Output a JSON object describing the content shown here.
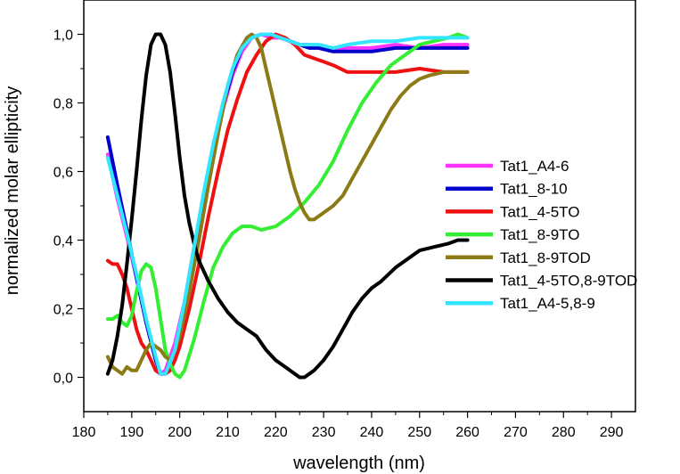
{
  "chart_data": {
    "type": "line",
    "title": "",
    "xlabel": "wavelength (nm)",
    "ylabel": "normalized molar ellipticity",
    "xlim": [
      180,
      295
    ],
    "ylim": [
      -0.1,
      1.1
    ],
    "xticks": [
      180,
      190,
      200,
      210,
      220,
      230,
      240,
      250,
      260,
      270,
      280,
      290
    ],
    "yticks": [
      0.0,
      0.2,
      0.4,
      0.6,
      0.8,
      1.0
    ],
    "xtick_labels": [
      "180",
      "190",
      "200",
      "210",
      "220",
      "230",
      "240",
      "250",
      "260",
      "270",
      "280",
      "290"
    ],
    "ytick_labels": [
      "0,0",
      "0,2",
      "0,4",
      "0,6",
      "0,8",
      "1,0"
    ],
    "grid": false,
    "legend_position": "right",
    "series": [
      {
        "name": "Tat1_A4-6",
        "color": "#ff33ff",
        "x": [
          185,
          187,
          189,
          191,
          193,
          195,
          196,
          197,
          199,
          201,
          203,
          205,
          207,
          209,
          211,
          213,
          215,
          217,
          219,
          221,
          223,
          225,
          227,
          229,
          232,
          235,
          240,
          245,
          250,
          255,
          260
        ],
        "y": [
          0.65,
          0.52,
          0.41,
          0.29,
          0.16,
          0.05,
          0.01,
          0.02,
          0.1,
          0.22,
          0.38,
          0.52,
          0.66,
          0.78,
          0.88,
          0.95,
          0.99,
          1.0,
          0.99,
          0.99,
          0.98,
          0.97,
          0.97,
          0.96,
          0.95,
          0.96,
          0.96,
          0.97,
          0.96,
          0.97,
          0.97
        ]
      },
      {
        "name": "Tat1_8-10",
        "color": "#0000cc",
        "x": [
          185,
          187,
          189,
          191,
          193,
          195,
          196,
          197,
          199,
          201,
          203,
          205,
          207,
          209,
          211,
          213,
          215,
          217,
          219,
          221,
          223,
          225,
          227,
          229,
          232,
          235,
          240,
          245,
          250,
          255,
          260
        ],
        "y": [
          0.7,
          0.56,
          0.43,
          0.29,
          0.16,
          0.05,
          0.01,
          0.01,
          0.08,
          0.2,
          0.36,
          0.52,
          0.66,
          0.79,
          0.89,
          0.96,
          0.99,
          1.0,
          1.0,
          0.99,
          0.98,
          0.97,
          0.96,
          0.96,
          0.95,
          0.95,
          0.95,
          0.96,
          0.96,
          0.96,
          0.96
        ]
      },
      {
        "name": "Tat1_4-5TO",
        "color": "#ee1111",
        "x": [
          185,
          186,
          187,
          188,
          189,
          190,
          191,
          192,
          193,
          194,
          195,
          196,
          197,
          198,
          199,
          200,
          202,
          204,
          206,
          208,
          210,
          212,
          214,
          216,
          218,
          220,
          222,
          224,
          226,
          228,
          230,
          232,
          235,
          238,
          240,
          245,
          250,
          255,
          260
        ],
        "y": [
          0.34,
          0.33,
          0.33,
          0.3,
          0.26,
          0.2,
          0.14,
          0.1,
          0.08,
          0.05,
          0.02,
          0.01,
          0.01,
          0.02,
          0.05,
          0.09,
          0.2,
          0.33,
          0.47,
          0.6,
          0.72,
          0.81,
          0.89,
          0.94,
          0.98,
          1.0,
          0.99,
          0.97,
          0.94,
          0.93,
          0.92,
          0.91,
          0.89,
          0.89,
          0.89,
          0.89,
          0.9,
          0.89,
          0.89
        ]
      },
      {
        "name": "Tat1_8-9TO",
        "color": "#33ee33",
        "x": [
          185,
          186,
          187,
          188,
          189,
          190,
          191,
          192,
          193,
          194,
          195,
          196,
          197,
          198,
          199,
          200,
          201,
          203,
          205,
          207,
          209,
          211,
          213,
          215,
          217,
          220,
          223,
          226,
          229,
          232,
          235,
          238,
          241,
          244,
          247,
          250,
          253,
          256,
          258,
          260
        ],
        "y": [
          0.17,
          0.17,
          0.18,
          0.16,
          0.15,
          0.18,
          0.25,
          0.31,
          0.33,
          0.32,
          0.26,
          0.17,
          0.08,
          0.04,
          0.01,
          0.0,
          0.02,
          0.11,
          0.22,
          0.32,
          0.38,
          0.42,
          0.44,
          0.44,
          0.43,
          0.44,
          0.47,
          0.51,
          0.56,
          0.63,
          0.72,
          0.8,
          0.86,
          0.91,
          0.94,
          0.97,
          0.98,
          0.99,
          1.0,
          0.99
        ]
      },
      {
        "name": "Tat1_8-9TOD",
        "color": "#8b7a15",
        "x": [
          185,
          186,
          187,
          188,
          189,
          190,
          191,
          192,
          193,
          194,
          195,
          196,
          197,
          198,
          199,
          200,
          202,
          204,
          206,
          208,
          210,
          212,
          214,
          215,
          216,
          217,
          218,
          219,
          220,
          221,
          222,
          223,
          224,
          225,
          226,
          227,
          228,
          230,
          232,
          234,
          236,
          238,
          240,
          242,
          244,
          246,
          248,
          250,
          252,
          255,
          258,
          260
        ],
        "y": [
          0.06,
          0.03,
          0.02,
          0.01,
          0.03,
          0.02,
          0.02,
          0.05,
          0.08,
          0.1,
          0.09,
          0.08,
          0.06,
          0.05,
          0.08,
          0.12,
          0.25,
          0.4,
          0.56,
          0.71,
          0.85,
          0.94,
          0.99,
          1.0,
          0.99,
          0.96,
          0.9,
          0.84,
          0.78,
          0.72,
          0.66,
          0.6,
          0.55,
          0.51,
          0.48,
          0.46,
          0.46,
          0.48,
          0.5,
          0.53,
          0.58,
          0.63,
          0.68,
          0.73,
          0.78,
          0.82,
          0.85,
          0.87,
          0.88,
          0.89,
          0.89,
          0.89
        ]
      },
      {
        "name": "Tat1_4-5TO,8-9TOD",
        "color": "#000000",
        "x": [
          185,
          186,
          187,
          188,
          189,
          190,
          191,
          192,
          193,
          194,
          195,
          196,
          197,
          198,
          199,
          200,
          201,
          202,
          203,
          204,
          206,
          208,
          210,
          212,
          214,
          216,
          218,
          220,
          222,
          224,
          225,
          226,
          227,
          228,
          230,
          232,
          234,
          236,
          238,
          240,
          242,
          245,
          248,
          250,
          253,
          256,
          258,
          260
        ],
        "y": [
          0.01,
          0.05,
          0.12,
          0.21,
          0.33,
          0.46,
          0.6,
          0.75,
          0.88,
          0.97,
          1.0,
          1.0,
          0.97,
          0.89,
          0.77,
          0.64,
          0.53,
          0.45,
          0.39,
          0.34,
          0.28,
          0.23,
          0.19,
          0.16,
          0.14,
          0.12,
          0.08,
          0.05,
          0.03,
          0.01,
          0.0,
          0.0,
          0.01,
          0.02,
          0.05,
          0.09,
          0.14,
          0.19,
          0.23,
          0.26,
          0.28,
          0.32,
          0.35,
          0.37,
          0.38,
          0.39,
          0.4,
          0.4
        ]
      },
      {
        "name": "Tat1_A4-5,8-9",
        "color": "#33e5ff",
        "x": [
          185,
          187,
          189,
          191,
          193,
          195,
          196,
          197,
          199,
          201,
          203,
          205,
          207,
          209,
          211,
          213,
          215,
          217,
          219,
          221,
          223,
          225,
          227,
          229,
          232,
          235,
          240,
          245,
          250,
          255,
          260
        ],
        "y": [
          0.64,
          0.53,
          0.42,
          0.3,
          0.17,
          0.06,
          0.01,
          0.01,
          0.08,
          0.22,
          0.38,
          0.54,
          0.68,
          0.8,
          0.9,
          0.96,
          0.99,
          1.0,
          1.0,
          0.99,
          0.98,
          0.97,
          0.97,
          0.97,
          0.96,
          0.97,
          0.98,
          0.98,
          0.99,
          0.99,
          0.99
        ]
      }
    ]
  }
}
